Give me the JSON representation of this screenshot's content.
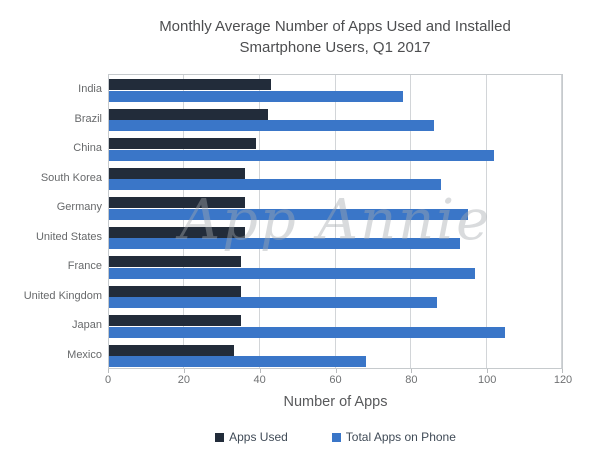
{
  "title": {
    "line1": "Monthly Average Number of Apps Used and Installed",
    "line2": "Smartphone Users, Q1 2017"
  },
  "watermark": "App Annie",
  "xlabel": "Number of Apps",
  "legend": [
    {
      "label": "Apps Used",
      "color": "#222c3a"
    },
    {
      "label": "Total Apps on Phone",
      "color": "#3a76c8"
    }
  ],
  "colors": {
    "apps_used": "#222c3a",
    "total_apps": "#3a76c8",
    "grid": "#d2d5d8",
    "border": "#c6cacd",
    "text": "#58595b"
  },
  "chart_data": {
    "type": "bar",
    "orientation": "horizontal",
    "title": "Monthly Average Number of Apps Used and Installed Smartphone Users, Q1 2017",
    "categories": [
      "India",
      "Brazil",
      "China",
      "South Korea",
      "Germany",
      "United States",
      "France",
      "United Kingdom",
      "Japan",
      "Mexico"
    ],
    "series": [
      {
        "name": "Apps Used",
        "color": "#222c3a",
        "values": [
          43,
          42,
          39,
          36,
          36,
          36,
          35,
          35,
          35,
          33
        ]
      },
      {
        "name": "Total Apps on Phone",
        "color": "#3a76c8",
        "values": [
          78,
          86,
          102,
          88,
          95,
          93,
          97,
          87,
          105,
          68
        ]
      }
    ],
    "xlabel": "Number of Apps",
    "ylabel": "",
    "xlim": [
      0,
      120
    ],
    "xticks": [
      0,
      20,
      40,
      60,
      80,
      100,
      120
    ],
    "grid": true,
    "legend_position": "bottom",
    "watermark": "App Annie"
  }
}
